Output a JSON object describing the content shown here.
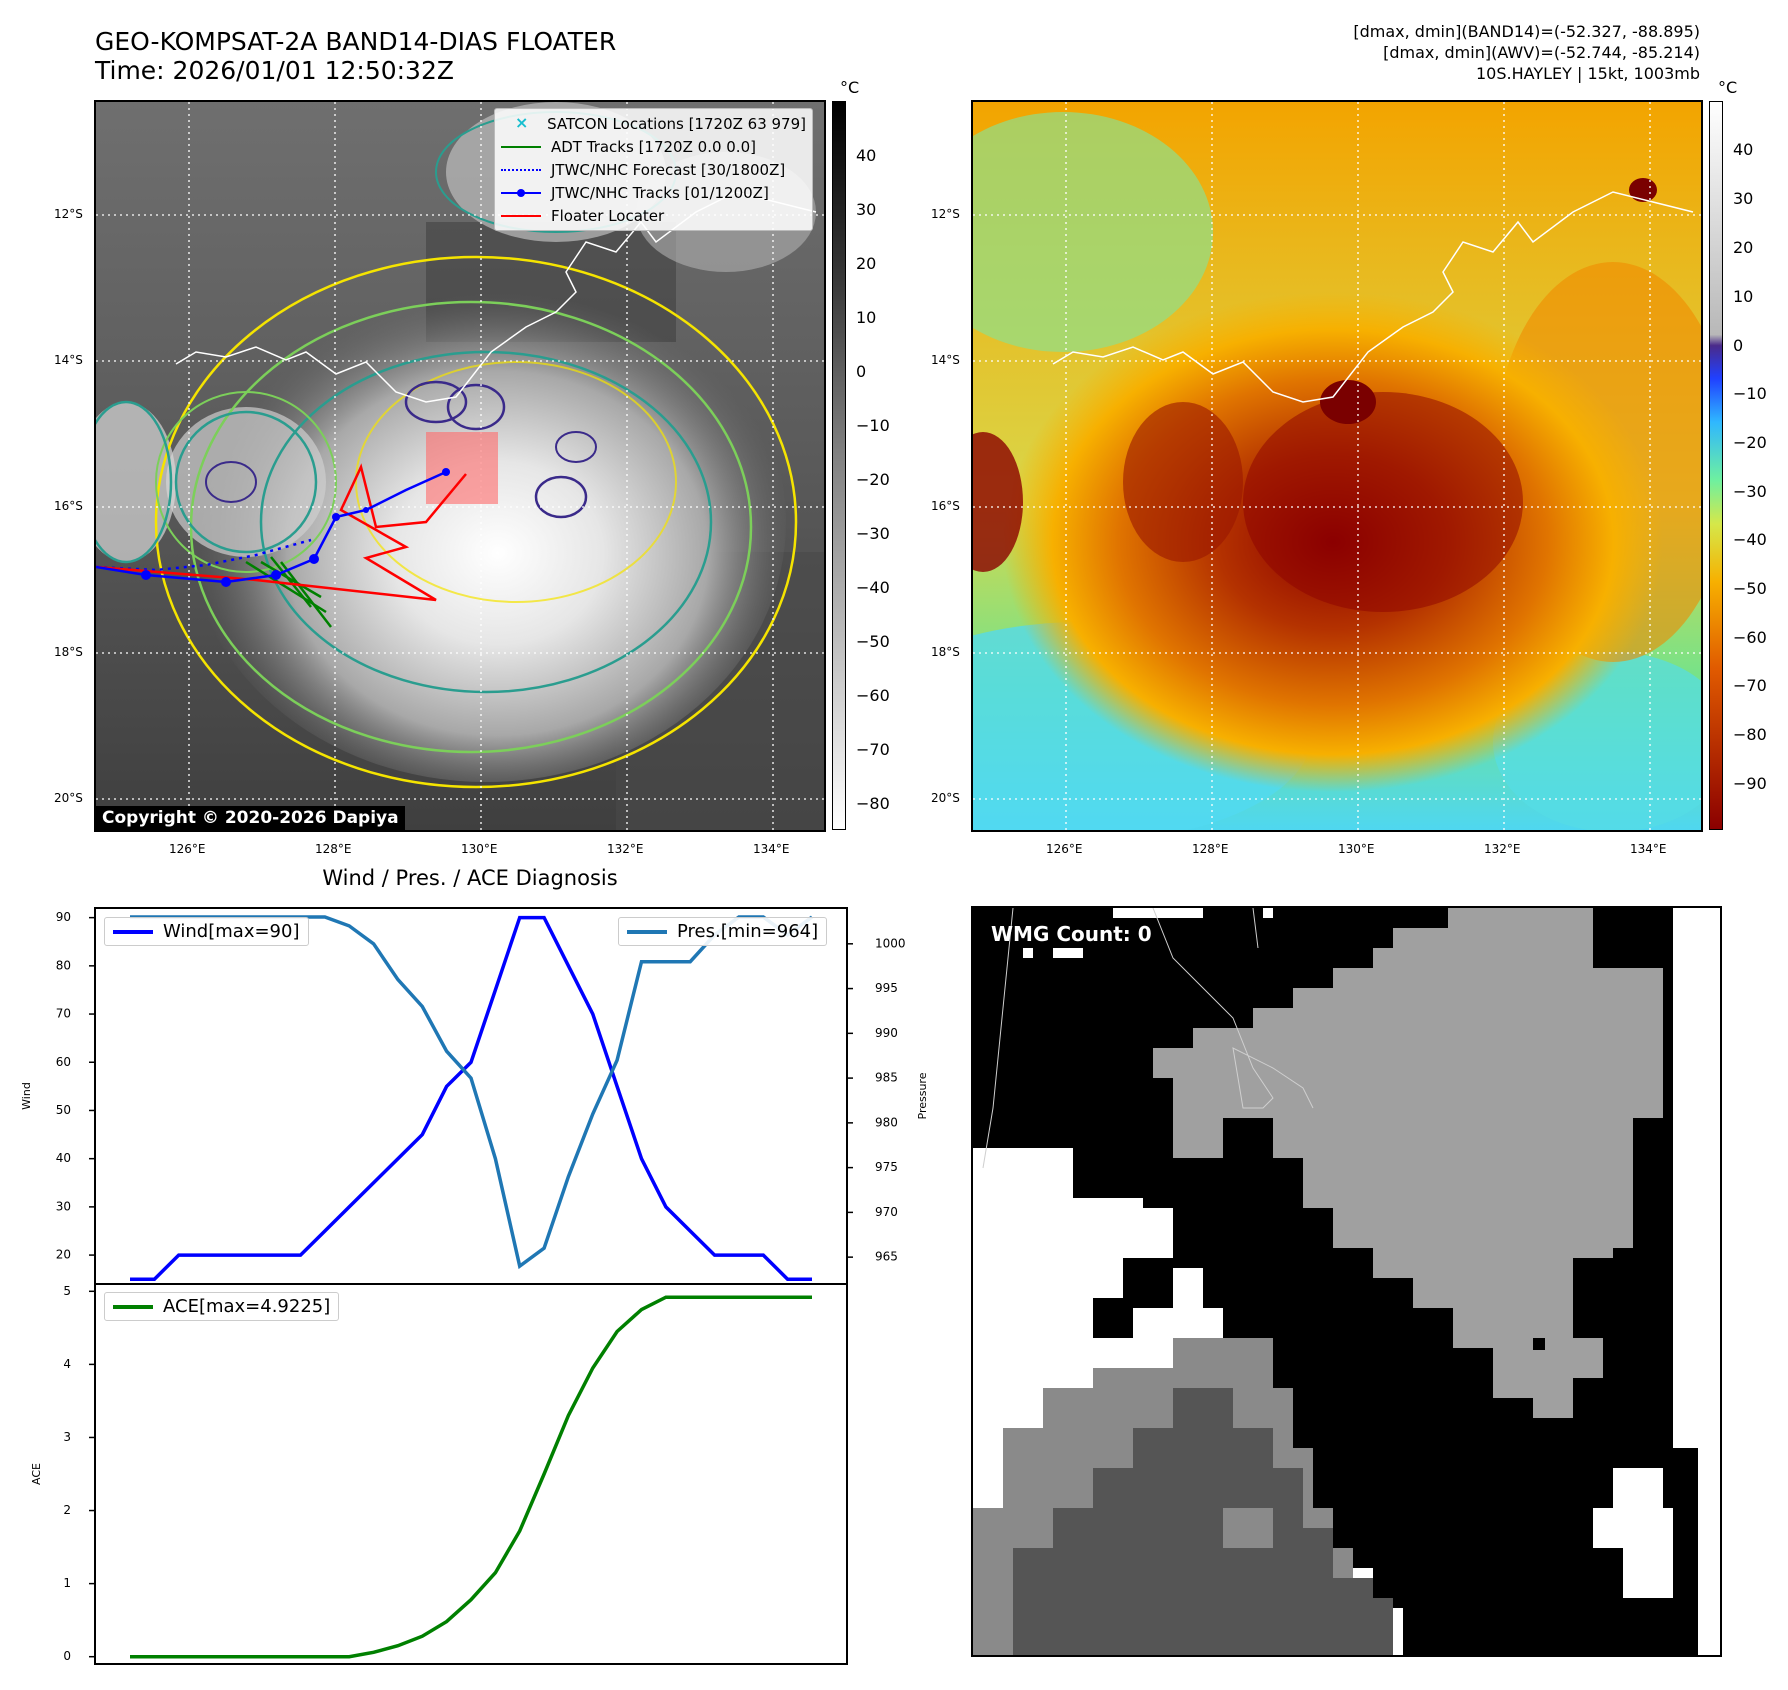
{
  "header": {
    "title_line1": "GEO-KOMPSAT-2A BAND14-DIAS FLOATER",
    "title_line2": "Time: 2026/01/01 12:50:32Z",
    "info_line1": "[dmax, dmin](BAND14)=(-52.327, -88.895)",
    "info_line2": "[dmax, dmin](AWV)=(-52.744, -85.214)",
    "info_line3": "10S.HAYLEY | 15kt, 1003mb"
  },
  "ir_panel": {
    "lat_labels": [
      "12°S",
      "14°S",
      "16°S",
      "18°S",
      "20°S"
    ],
    "lon_labels": [
      "126°E",
      "128°E",
      "130°E",
      "132°E",
      "134°E"
    ],
    "copyright": "Copyright © 2020-2026 Dapiya",
    "legend": [
      {
        "label": "SATCON Locations [1720Z 63 979]",
        "color": "#17becf",
        "style": "x-marker"
      },
      {
        "label": "ADT Tracks [1720Z 0.0 0.0]",
        "color": "#008000",
        "style": "solid"
      },
      {
        "label": "JTWC/NHC Forecast [30/1800Z]",
        "color": "#0000ff",
        "style": "dotted"
      },
      {
        "label": "JTWC/NHC Tracks [01/1200Z]",
        "color": "#0000ff",
        "style": "solid-dot"
      },
      {
        "label": "Floater Locater",
        "color": "#ff0000",
        "style": "solid"
      }
    ],
    "colorbar": {
      "unit": "°C",
      "ticks": [
        "40",
        "30",
        "20",
        "10",
        "0",
        "−10",
        "−20",
        "−30",
        "−40",
        "−50",
        "−60",
        "−70",
        "−80"
      ]
    }
  },
  "awv_panel": {
    "lat_labels": [
      "12°S",
      "14°S",
      "16°S",
      "18°S",
      "20°S"
    ],
    "lon_labels": [
      "126°E",
      "128°E",
      "130°E",
      "132°E",
      "134°E"
    ],
    "colorbar": {
      "unit": "°C",
      "ticks": [
        "40",
        "30",
        "20",
        "10",
        "0",
        "−10",
        "−20",
        "−30",
        "−40",
        "−50",
        "−60",
        "−70",
        "−80",
        "−90"
      ]
    }
  },
  "wmg_panel": {
    "label": "WMG Count: 0"
  },
  "chart_data": [
    {
      "type": "line",
      "title": "Wind / Pres. / ACE Diagnosis",
      "ylabel": "Wind",
      "ylim": [
        14,
        92
      ],
      "yticks": [
        "90",
        "80",
        "70",
        "60",
        "50",
        "40",
        "30",
        "20"
      ],
      "x": [
        0,
        1,
        2,
        3,
        4,
        5,
        6,
        7,
        8,
        9,
        10,
        11,
        12,
        13,
        14,
        15,
        16,
        17,
        18,
        19,
        20,
        21,
        22,
        23,
        24,
        25,
        26,
        27,
        28
      ],
      "series": [
        {
          "name": "Wind[max=90]",
          "color": "#0000ff",
          "values": [
            15,
            15,
            20,
            20,
            20,
            20,
            20,
            20,
            25,
            30,
            35,
            40,
            45,
            55,
            60,
            75,
            90,
            90,
            80,
            70,
            55,
            40,
            30,
            25,
            20,
            20,
            20,
            15,
            15
          ]
        }
      ]
    },
    {
      "type": "line",
      "ylabel": "Pressure",
      "ylim": [
        962,
        1004
      ],
      "yticks": [
        "1000",
        "995",
        "990",
        "985",
        "980",
        "975",
        "970",
        "965"
      ],
      "x": [
        0,
        1,
        2,
        3,
        4,
        5,
        6,
        7,
        8,
        9,
        10,
        11,
        12,
        13,
        14,
        15,
        16,
        17,
        18,
        19,
        20,
        21,
        22,
        23,
        24,
        25,
        26,
        27,
        28
      ],
      "series": [
        {
          "name": "Pres.[min=964]",
          "color": "#1f77b4",
          "values": [
            1003,
            1003,
            1003,
            1003,
            1003,
            1003,
            1003,
            1003,
            1003,
            1002,
            1000,
            996,
            993,
            988,
            985,
            976,
            964,
            966,
            974,
            981,
            987,
            998,
            998,
            998,
            1001,
            1003,
            1003,
            1001,
            1003
          ]
        }
      ]
    },
    {
      "type": "line",
      "ylabel": "ACE",
      "ylim": [
        -0.1,
        5.1
      ],
      "yticks": [
        "5",
        "4",
        "3",
        "2",
        "1",
        "0"
      ],
      "x": [
        0,
        1,
        2,
        3,
        4,
        5,
        6,
        7,
        8,
        9,
        10,
        11,
        12,
        13,
        14,
        15,
        16,
        17,
        18,
        19,
        20,
        21,
        22,
        23,
        24,
        25,
        26,
        27,
        28
      ],
      "series": [
        {
          "name": "ACE[max=4.9225]",
          "color": "#008000",
          "values": [
            0,
            0,
            0,
            0,
            0,
            0,
            0,
            0,
            0,
            0,
            0.06,
            0.15,
            0.28,
            0.48,
            0.78,
            1.15,
            1.72,
            2.5,
            3.3,
            3.95,
            4.45,
            4.75,
            4.92,
            4.92,
            4.92,
            4.92,
            4.92,
            4.92,
            4.92
          ]
        }
      ]
    }
  ]
}
